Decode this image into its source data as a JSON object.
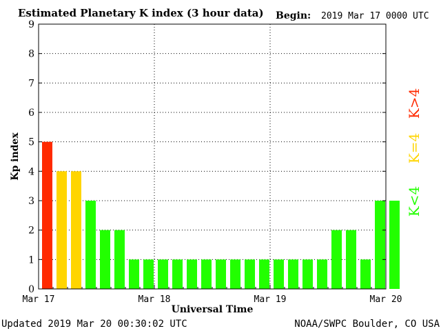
{
  "chart_data": {
    "type": "bar",
    "title": "Estimated Planetary K index (3 hour data)",
    "begin_label": "Begin:",
    "begin_value": "2019 Mar 17 0000 UTC",
    "xlabel": "Universal Time",
    "ylabel": "Kp index",
    "ylim": [
      0,
      9
    ],
    "yticks": [
      "0",
      "1",
      "2",
      "3",
      "4",
      "5",
      "6",
      "7",
      "8",
      "9"
    ],
    "xtick_labels": [
      "Mar 17",
      "Mar 18",
      "Mar 19",
      "Mar 20"
    ],
    "interval_hours": 3,
    "values": [
      5,
      4,
      4,
      3,
      2,
      2,
      1,
      1,
      1,
      1,
      1,
      1,
      1,
      1,
      1,
      1,
      1,
      1,
      1,
      1,
      2,
      2,
      1,
      3,
      3
    ],
    "grid": true,
    "colors": {
      "low": "#22ff00",
      "mid": "#ffd500",
      "high": "#ff2a00"
    },
    "legend": [
      "K<4",
      "K=4",
      "K>4"
    ]
  },
  "footer": {
    "updated": "Updated 2019 Mar 20 00:30:02 UTC",
    "source": "NOAA/SWPC Boulder, CO USA"
  }
}
